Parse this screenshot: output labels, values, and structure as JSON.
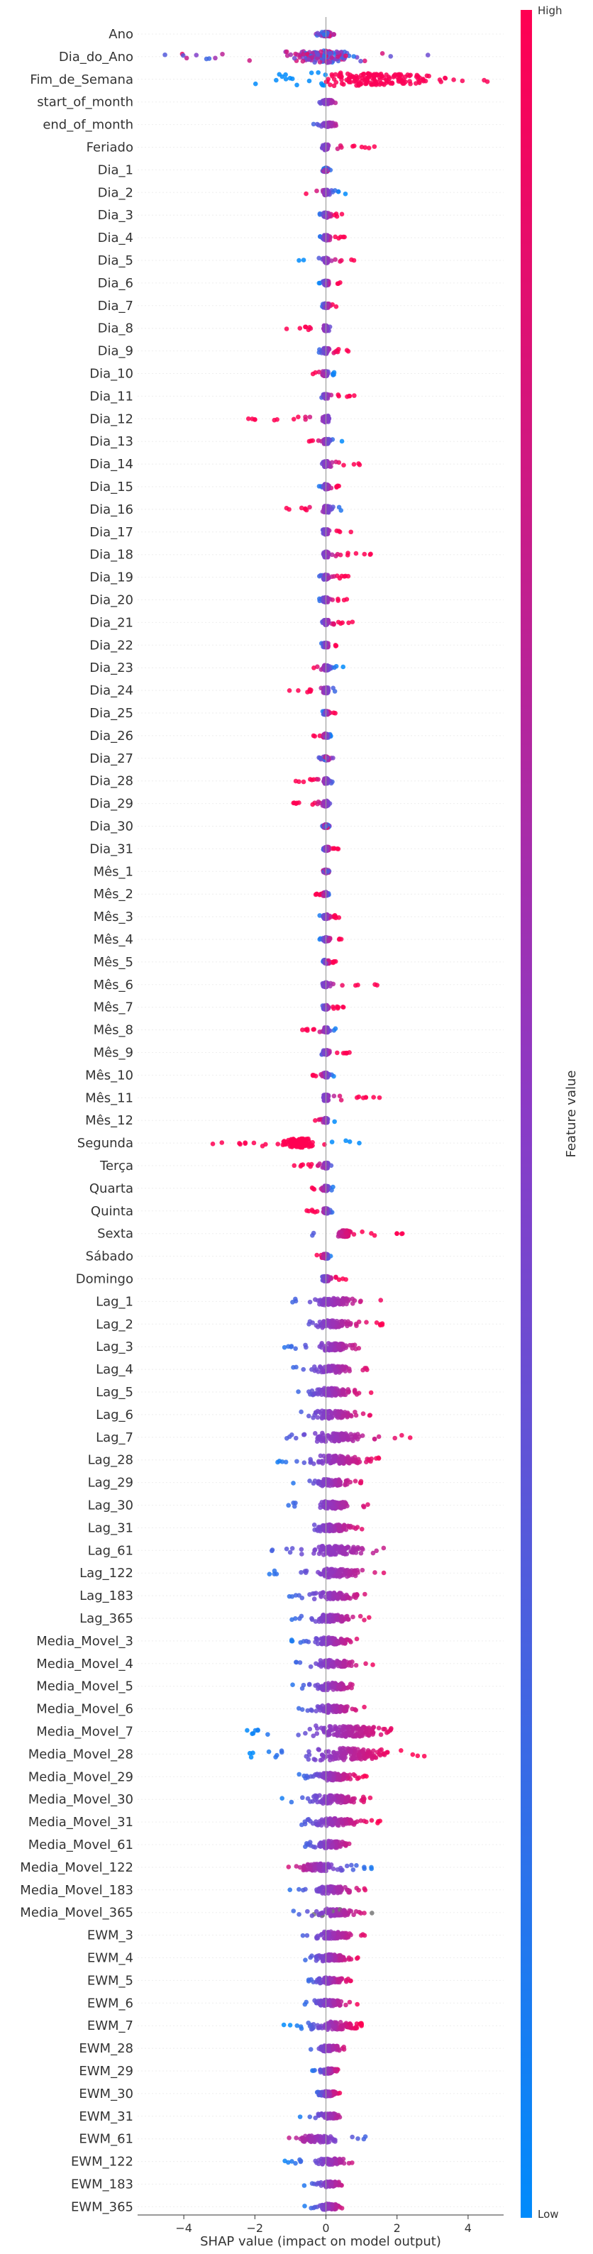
{
  "chart_data": {
    "type": "scatter",
    "subtype": "shap-beeswarm-summary",
    "title": "",
    "xlabel": "SHAP value (impact on model output)",
    "ylabel": "",
    "x_ticks": [
      -4,
      -2,
      0,
      2,
      4
    ],
    "xlim": [
      -5.3,
      5.0
    ],
    "grid": false,
    "legend": "right",
    "colorbar": {
      "label": "Feature value",
      "high_label": "High",
      "low_label": "Low",
      "low_color": "#008bfb",
      "mid_color": "#8a3bc6",
      "high_color": "#ff0052",
      "missing_color": "#777777"
    },
    "features": [
      {
        "name": "Ano",
        "min": -0.5,
        "max": 0.35,
        "core": 0.12,
        "bias": 0.0,
        "density": 0.5
      },
      {
        "name": "Dia_do_Ano",
        "min": -4.6,
        "max": 3.3,
        "core": 0.5,
        "bias": 0.0,
        "density": 2.0
      },
      {
        "name": "Fim_de_Semana",
        "min": -2.4,
        "max": 4.6,
        "core": 1.0,
        "bias": 1.0,
        "density": 2.5
      },
      {
        "name": "start_of_month",
        "min": -0.25,
        "max": 0.35,
        "core": 0.1,
        "bias": 0.3,
        "density": 0.4
      },
      {
        "name": "end_of_month",
        "min": -0.35,
        "max": 0.3,
        "core": 0.1,
        "bias": 0.3,
        "density": 0.4
      },
      {
        "name": "Feriado",
        "min": -0.15,
        "max": 1.65,
        "core": 0.05,
        "bias": 1.0,
        "density": 0.6
      },
      {
        "name": "Dia_1",
        "min": -0.15,
        "max": 0.15,
        "core": 0.05,
        "bias": 0.0,
        "density": 0.3
      },
      {
        "name": "Dia_2",
        "min": -0.7,
        "max": 0.6,
        "core": 0.05,
        "bias": -1.0,
        "density": 0.5
      },
      {
        "name": "Dia_3",
        "min": -0.3,
        "max": 0.5,
        "core": 0.05,
        "bias": 1.0,
        "density": 0.5
      },
      {
        "name": "Dia_4",
        "min": -0.2,
        "max": 0.55,
        "core": 0.05,
        "bias": 1.0,
        "density": 0.5
      },
      {
        "name": "Dia_5",
        "min": -0.8,
        "max": 0.8,
        "core": 0.05,
        "bias": 1.0,
        "density": 0.5
      },
      {
        "name": "Dia_6",
        "min": -0.2,
        "max": 0.4,
        "core": 0.05,
        "bias": 1.0,
        "density": 0.4
      },
      {
        "name": "Dia_7",
        "min": -0.15,
        "max": 0.35,
        "core": 0.05,
        "bias": 1.0,
        "density": 0.4
      },
      {
        "name": "Dia_8",
        "min": -1.2,
        "max": 0.3,
        "core": 0.05,
        "bias": -1.0,
        "density": 0.6
      },
      {
        "name": "Dia_9",
        "min": -0.2,
        "max": 0.8,
        "core": 0.05,
        "bias": 1.0,
        "density": 0.6
      },
      {
        "name": "Dia_10",
        "min": -0.4,
        "max": 0.4,
        "core": 0.05,
        "bias": -1.0,
        "density": 0.5
      },
      {
        "name": "Dia_11",
        "min": -0.15,
        "max": 0.8,
        "core": 0.05,
        "bias": 1.0,
        "density": 0.5
      },
      {
        "name": "Dia_12",
        "min": -2.2,
        "max": 0.3,
        "core": 0.05,
        "bias": -1.0,
        "density": 0.8
      },
      {
        "name": "Dia_13",
        "min": -0.5,
        "max": 0.45,
        "core": 0.05,
        "bias": -1.0,
        "density": 0.5
      },
      {
        "name": "Dia_14",
        "min": -0.2,
        "max": 1.15,
        "core": 0.05,
        "bias": 1.0,
        "density": 0.6
      },
      {
        "name": "Dia_15",
        "min": -0.2,
        "max": 0.6,
        "core": 0.05,
        "bias": 1.0,
        "density": 0.5
      },
      {
        "name": "Dia_16",
        "min": -1.3,
        "max": 0.5,
        "core": 0.05,
        "bias": -1.0,
        "density": 0.8
      },
      {
        "name": "Dia_17",
        "min": -0.15,
        "max": 0.8,
        "core": 0.05,
        "bias": 1.0,
        "density": 0.5
      },
      {
        "name": "Dia_18",
        "min": -0.2,
        "max": 1.3,
        "core": 0.05,
        "bias": 1.0,
        "density": 0.6
      },
      {
        "name": "Dia_19",
        "min": -0.3,
        "max": 0.75,
        "core": 0.05,
        "bias": 1.0,
        "density": 0.5
      },
      {
        "name": "Dia_20",
        "min": -0.25,
        "max": 0.6,
        "core": 0.05,
        "bias": 1.0,
        "density": 0.5
      },
      {
        "name": "Dia_21",
        "min": -0.15,
        "max": 0.8,
        "core": 0.05,
        "bias": 1.0,
        "density": 0.5
      },
      {
        "name": "Dia_22",
        "min": -0.15,
        "max": 0.45,
        "core": 0.05,
        "bias": 1.0,
        "density": 0.4
      },
      {
        "name": "Dia_23",
        "min": -0.5,
        "max": 0.55,
        "core": 0.05,
        "bias": -1.0,
        "density": 0.5
      },
      {
        "name": "Dia_24",
        "min": -1.1,
        "max": 0.3,
        "core": 0.05,
        "bias": -1.0,
        "density": 0.6
      },
      {
        "name": "Dia_25",
        "min": -0.1,
        "max": 0.3,
        "core": 0.05,
        "bias": 1.0,
        "density": 0.3
      },
      {
        "name": "Dia_26",
        "min": -0.35,
        "max": 0.15,
        "core": 0.05,
        "bias": -1.0,
        "density": 0.3
      },
      {
        "name": "Dia_27",
        "min": -0.2,
        "max": 0.2,
        "core": 0.05,
        "bias": 0.0,
        "density": 0.3
      },
      {
        "name": "Dia_28",
        "min": -0.9,
        "max": 0.2,
        "core": 0.05,
        "bias": -1.0,
        "density": 0.6
      },
      {
        "name": "Dia_29",
        "min": -1.0,
        "max": 0.2,
        "core": 0.05,
        "bias": -1.0,
        "density": 0.6
      },
      {
        "name": "Dia_30",
        "min": -0.1,
        "max": 0.1,
        "core": 0.05,
        "bias": 0.0,
        "density": 0.2
      },
      {
        "name": "Dia_31",
        "min": -0.1,
        "max": 0.45,
        "core": 0.05,
        "bias": 1.0,
        "density": 0.3
      },
      {
        "name": "Mês_1",
        "min": -0.1,
        "max": 0.1,
        "core": 0.05,
        "bias": 0.0,
        "density": 0.2
      },
      {
        "name": "Mês_2",
        "min": -0.3,
        "max": 0.1,
        "core": 0.05,
        "bias": -1.0,
        "density": 0.3
      },
      {
        "name": "Mês_3",
        "min": -0.2,
        "max": 0.5,
        "core": 0.05,
        "bias": 1.0,
        "density": 0.4
      },
      {
        "name": "Mês_4",
        "min": -0.2,
        "max": 0.45,
        "core": 0.05,
        "bias": 1.0,
        "density": 0.3
      },
      {
        "name": "Mês_5",
        "min": -0.1,
        "max": 0.3,
        "core": 0.05,
        "bias": 1.0,
        "density": 0.3
      },
      {
        "name": "Mês_6",
        "min": -0.2,
        "max": 1.5,
        "core": 0.05,
        "bias": 1.0,
        "density": 0.4
      },
      {
        "name": "Mês_7",
        "min": -0.15,
        "max": 0.5,
        "core": 0.05,
        "bias": 1.0,
        "density": 0.4
      },
      {
        "name": "Mês_8",
        "min": -0.7,
        "max": 0.3,
        "core": 0.05,
        "bias": -1.0,
        "density": 0.5
      },
      {
        "name": "Mês_9",
        "min": -0.2,
        "max": 0.7,
        "core": 0.05,
        "bias": 1.0,
        "density": 0.4
      },
      {
        "name": "Mês_10",
        "min": -0.4,
        "max": 0.35,
        "core": 0.05,
        "bias": -1.0,
        "density": 0.4
      },
      {
        "name": "Mês_11",
        "min": -0.15,
        "max": 1.7,
        "core": 0.05,
        "bias": 1.0,
        "density": 0.7
      },
      {
        "name": "Mês_12",
        "min": -0.5,
        "max": 0.25,
        "core": 0.05,
        "bias": -1.0,
        "density": 0.4
      },
      {
        "name": "Segunda",
        "min": -3.3,
        "max": 1.05,
        "core": 0.25,
        "bias": -1.0,
        "density": 1.6
      },
      {
        "name": "Terça",
        "min": -0.9,
        "max": 0.25,
        "core": 0.05,
        "bias": -1.0,
        "density": 0.6
      },
      {
        "name": "Quarta",
        "min": -0.6,
        "max": 0.2,
        "core": 0.05,
        "bias": -1.0,
        "density": 0.5
      },
      {
        "name": "Quinta",
        "min": -0.6,
        "max": 0.2,
        "core": 0.05,
        "bias": -1.0,
        "density": 0.5
      },
      {
        "name": "Sexta",
        "min": -0.5,
        "max": 2.3,
        "core": 0.1,
        "bias": 1.0,
        "density": 1.0
      },
      {
        "name": "Sábado",
        "min": -0.3,
        "max": 0.2,
        "core": 0.05,
        "bias": -1.0,
        "density": 0.4
      },
      {
        "name": "Domingo",
        "min": -0.2,
        "max": 0.8,
        "core": 0.05,
        "bias": 1.0,
        "density": 0.5
      },
      {
        "name": "Lag_1",
        "min": -1.2,
        "max": 1.6,
        "core": 0.3,
        "bias": 0.5,
        "density": 1.0
      },
      {
        "name": "Lag_2",
        "min": -0.8,
        "max": 1.6,
        "core": 0.3,
        "bias": 0.5,
        "density": 1.0
      },
      {
        "name": "Lag_3",
        "min": -1.2,
        "max": 1.4,
        "core": 0.3,
        "bias": 0.5,
        "density": 1.0
      },
      {
        "name": "Lag_4",
        "min": -1.2,
        "max": 1.3,
        "core": 0.3,
        "bias": 0.5,
        "density": 1.0
      },
      {
        "name": "Lag_5",
        "min": -0.8,
        "max": 1.4,
        "core": 0.35,
        "bias": 0.5,
        "density": 1.1
      },
      {
        "name": "Lag_6",
        "min": -1.0,
        "max": 1.4,
        "core": 0.35,
        "bias": 0.5,
        "density": 1.1
      },
      {
        "name": "Lag_7",
        "min": -1.5,
        "max": 2.5,
        "core": 0.4,
        "bias": 0.5,
        "density": 1.3
      },
      {
        "name": "Lag_28",
        "min": -1.6,
        "max": 1.5,
        "core": 0.45,
        "bias": 0.6,
        "density": 1.3
      },
      {
        "name": "Lag_29",
        "min": -1.0,
        "max": 1.0,
        "core": 0.3,
        "bias": 0.5,
        "density": 1.0
      },
      {
        "name": "Lag_30",
        "min": -1.2,
        "max": 1.4,
        "core": 0.3,
        "bias": 0.5,
        "density": 1.0
      },
      {
        "name": "Lag_31",
        "min": -0.9,
        "max": 1.2,
        "core": 0.3,
        "bias": 0.5,
        "density": 1.0
      },
      {
        "name": "Lag_61",
        "min": -2.1,
        "max": 1.9,
        "core": 0.4,
        "bias": 0.4,
        "density": 1.3
      },
      {
        "name": "Lag_122",
        "min": -1.7,
        "max": 1.7,
        "core": 0.4,
        "bias": 0.5,
        "density": 1.2
      },
      {
        "name": "Lag_183",
        "min": -1.4,
        "max": 1.2,
        "core": 0.35,
        "bias": 0.5,
        "density": 1.0
      },
      {
        "name": "Lag_365",
        "min": -1.0,
        "max": 1.3,
        "core": 0.35,
        "bias": 0.5,
        "density": 1.0
      },
      {
        "name": "Media_Movel_3",
        "min": -1.0,
        "max": 0.9,
        "core": 0.3,
        "bias": 0.5,
        "density": 1.0
      },
      {
        "name": "Media_Movel_4",
        "min": -1.0,
        "max": 1.4,
        "core": 0.3,
        "bias": 0.5,
        "density": 1.0
      },
      {
        "name": "Media_Movel_5",
        "min": -1.0,
        "max": 1.1,
        "core": 0.3,
        "bias": 0.5,
        "density": 1.0
      },
      {
        "name": "Media_Movel_6",
        "min": -0.9,
        "max": 1.2,
        "core": 0.3,
        "bias": 0.5,
        "density": 1.0
      },
      {
        "name": "Media_Movel_7",
        "min": -2.9,
        "max": 2.1,
        "core": 0.6,
        "bias": 0.7,
        "density": 2.0
      },
      {
        "name": "Media_Movel_28",
        "min": -2.3,
        "max": 2.8,
        "core": 0.7,
        "bias": 0.8,
        "density": 2.2
      },
      {
        "name": "Media_Movel_29",
        "min": -0.8,
        "max": 1.3,
        "core": 0.4,
        "bias": 0.6,
        "density": 1.1
      },
      {
        "name": "Media_Movel_30",
        "min": -1.5,
        "max": 1.3,
        "core": 0.45,
        "bias": 0.6,
        "density": 1.2
      },
      {
        "name": "Media_Movel_31",
        "min": -1.0,
        "max": 1.7,
        "core": 0.4,
        "bias": 0.6,
        "density": 1.1
      },
      {
        "name": "Media_Movel_61",
        "min": -0.9,
        "max": 0.9,
        "core": 0.3,
        "bias": 0.5,
        "density": 1.0
      },
      {
        "name": "Media_Movel_122",
        "min": -1.2,
        "max": 1.4,
        "core": 0.35,
        "bias": -0.5,
        "density": 1.0
      },
      {
        "name": "Media_Movel_183",
        "min": -1.1,
        "max": 1.2,
        "core": 0.3,
        "bias": 0.5,
        "density": 1.0
      },
      {
        "name": "Media_Movel_365",
        "min": -1.3,
        "max": 1.3,
        "core": 0.35,
        "bias": 0.5,
        "density": 1.0,
        "missing": true
      },
      {
        "name": "EWM_3",
        "min": -0.9,
        "max": 1.3,
        "core": 0.3,
        "bias": 0.5,
        "density": 1.0
      },
      {
        "name": "EWM_4",
        "min": -0.6,
        "max": 1.0,
        "core": 0.3,
        "bias": 0.5,
        "density": 0.9
      },
      {
        "name": "EWM_5",
        "min": -0.5,
        "max": 0.8,
        "core": 0.25,
        "bias": 0.5,
        "density": 0.8
      },
      {
        "name": "EWM_6",
        "min": -0.6,
        "max": 0.9,
        "core": 0.25,
        "bias": 0.5,
        "density": 0.8
      },
      {
        "name": "EWM_7",
        "min": -1.5,
        "max": 1.0,
        "core": 0.45,
        "bias": 0.8,
        "density": 1.2
      },
      {
        "name": "EWM_28",
        "min": -0.7,
        "max": 0.6,
        "core": 0.2,
        "bias": 0.5,
        "density": 0.7
      },
      {
        "name": "EWM_29",
        "min": -0.4,
        "max": 0.4,
        "core": 0.15,
        "bias": 0.5,
        "density": 0.6
      },
      {
        "name": "EWM_30",
        "min": -0.3,
        "max": 0.4,
        "core": 0.15,
        "bias": 0.5,
        "density": 0.6
      },
      {
        "name": "EWM_31",
        "min": -0.8,
        "max": 0.6,
        "core": 0.2,
        "bias": 0.5,
        "density": 0.7
      },
      {
        "name": "EWM_61",
        "min": -1.8,
        "max": 1.6,
        "core": 0.3,
        "bias": -0.5,
        "density": 0.9
      },
      {
        "name": "EWM_122",
        "min": -1.2,
        "max": 0.8,
        "core": 0.25,
        "bias": 0.5,
        "density": 0.8
      },
      {
        "name": "EWM_183",
        "min": -0.8,
        "max": 0.5,
        "core": 0.2,
        "bias": 0.5,
        "density": 0.7
      },
      {
        "name": "EWM_365",
        "min": -0.6,
        "max": 0.6,
        "core": 0.2,
        "bias": 0.5,
        "density": 0.7
      }
    ]
  }
}
